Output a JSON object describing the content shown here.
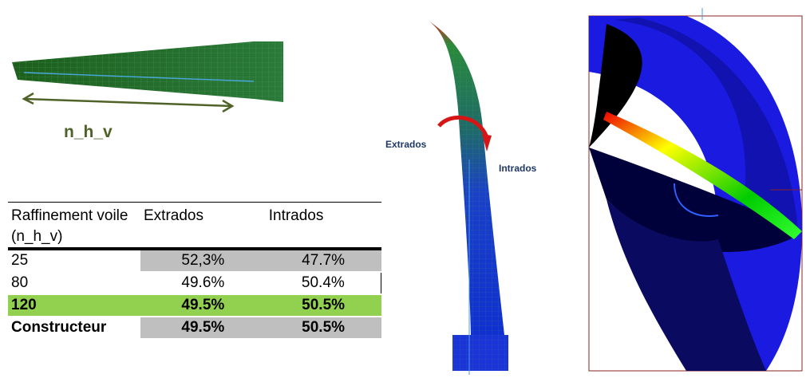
{
  "mesh_label": "n_h_v",
  "blade_labels": {
    "extrados": "Extrados",
    "intrados": "Intrados"
  },
  "table": {
    "header": [
      "Raffinement voile (n_h_v)",
      "Extrados",
      "Intrados"
    ],
    "rows": [
      [
        "25",
        "52,3%",
        "47.7%"
      ],
      [
        "80",
        "49.6%",
        "50.4%"
      ],
      [
        "120",
        "49.5%",
        "50.5%"
      ],
      [
        "Constructeur",
        "49.5%",
        "50.5%"
      ]
    ]
  }
}
